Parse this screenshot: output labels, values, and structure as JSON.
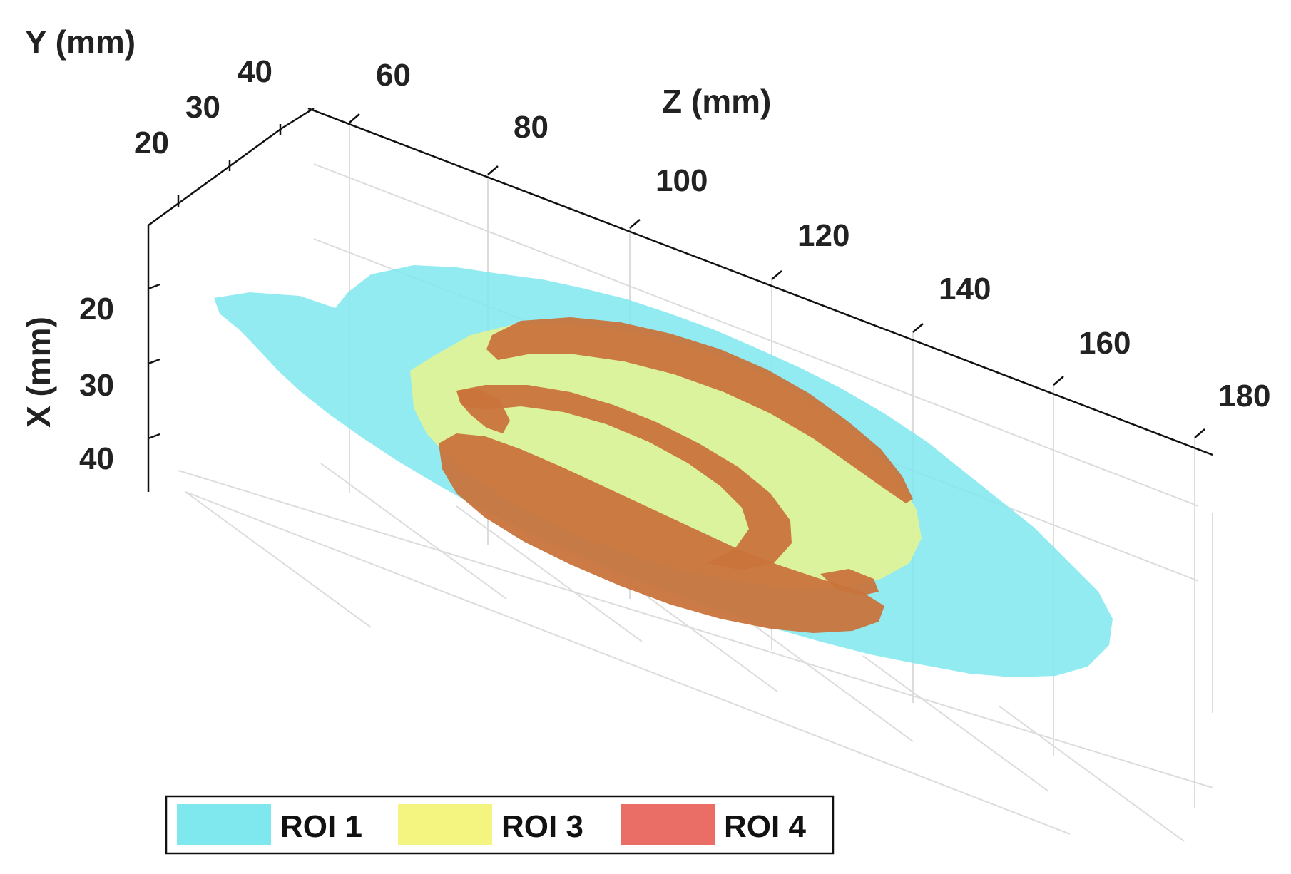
{
  "chart_data": {
    "type": "3d-surface",
    "title": "",
    "xlabel": "X (mm)",
    "ylabel": "Y (mm)",
    "zlabel": "Z (mm)",
    "x_ticks": [
      "20",
      "30",
      "40"
    ],
    "y_ticks": [
      "20",
      "30",
      "40"
    ],
    "z_ticks": [
      "60",
      "80",
      "100",
      "120",
      "140",
      "160",
      "180"
    ],
    "xlim": [
      15,
      45
    ],
    "ylim": [
      15,
      40
    ],
    "zlim": [
      55,
      180
    ],
    "grid": true,
    "legend_position": "bottom-left",
    "series": [
      {
        "name": "ROI 1",
        "color": "#7fe8ee"
      },
      {
        "name": "ROI 3",
        "color": "#f4f580"
      },
      {
        "name": "ROI 4",
        "color": "#ea6d66"
      }
    ]
  }
}
